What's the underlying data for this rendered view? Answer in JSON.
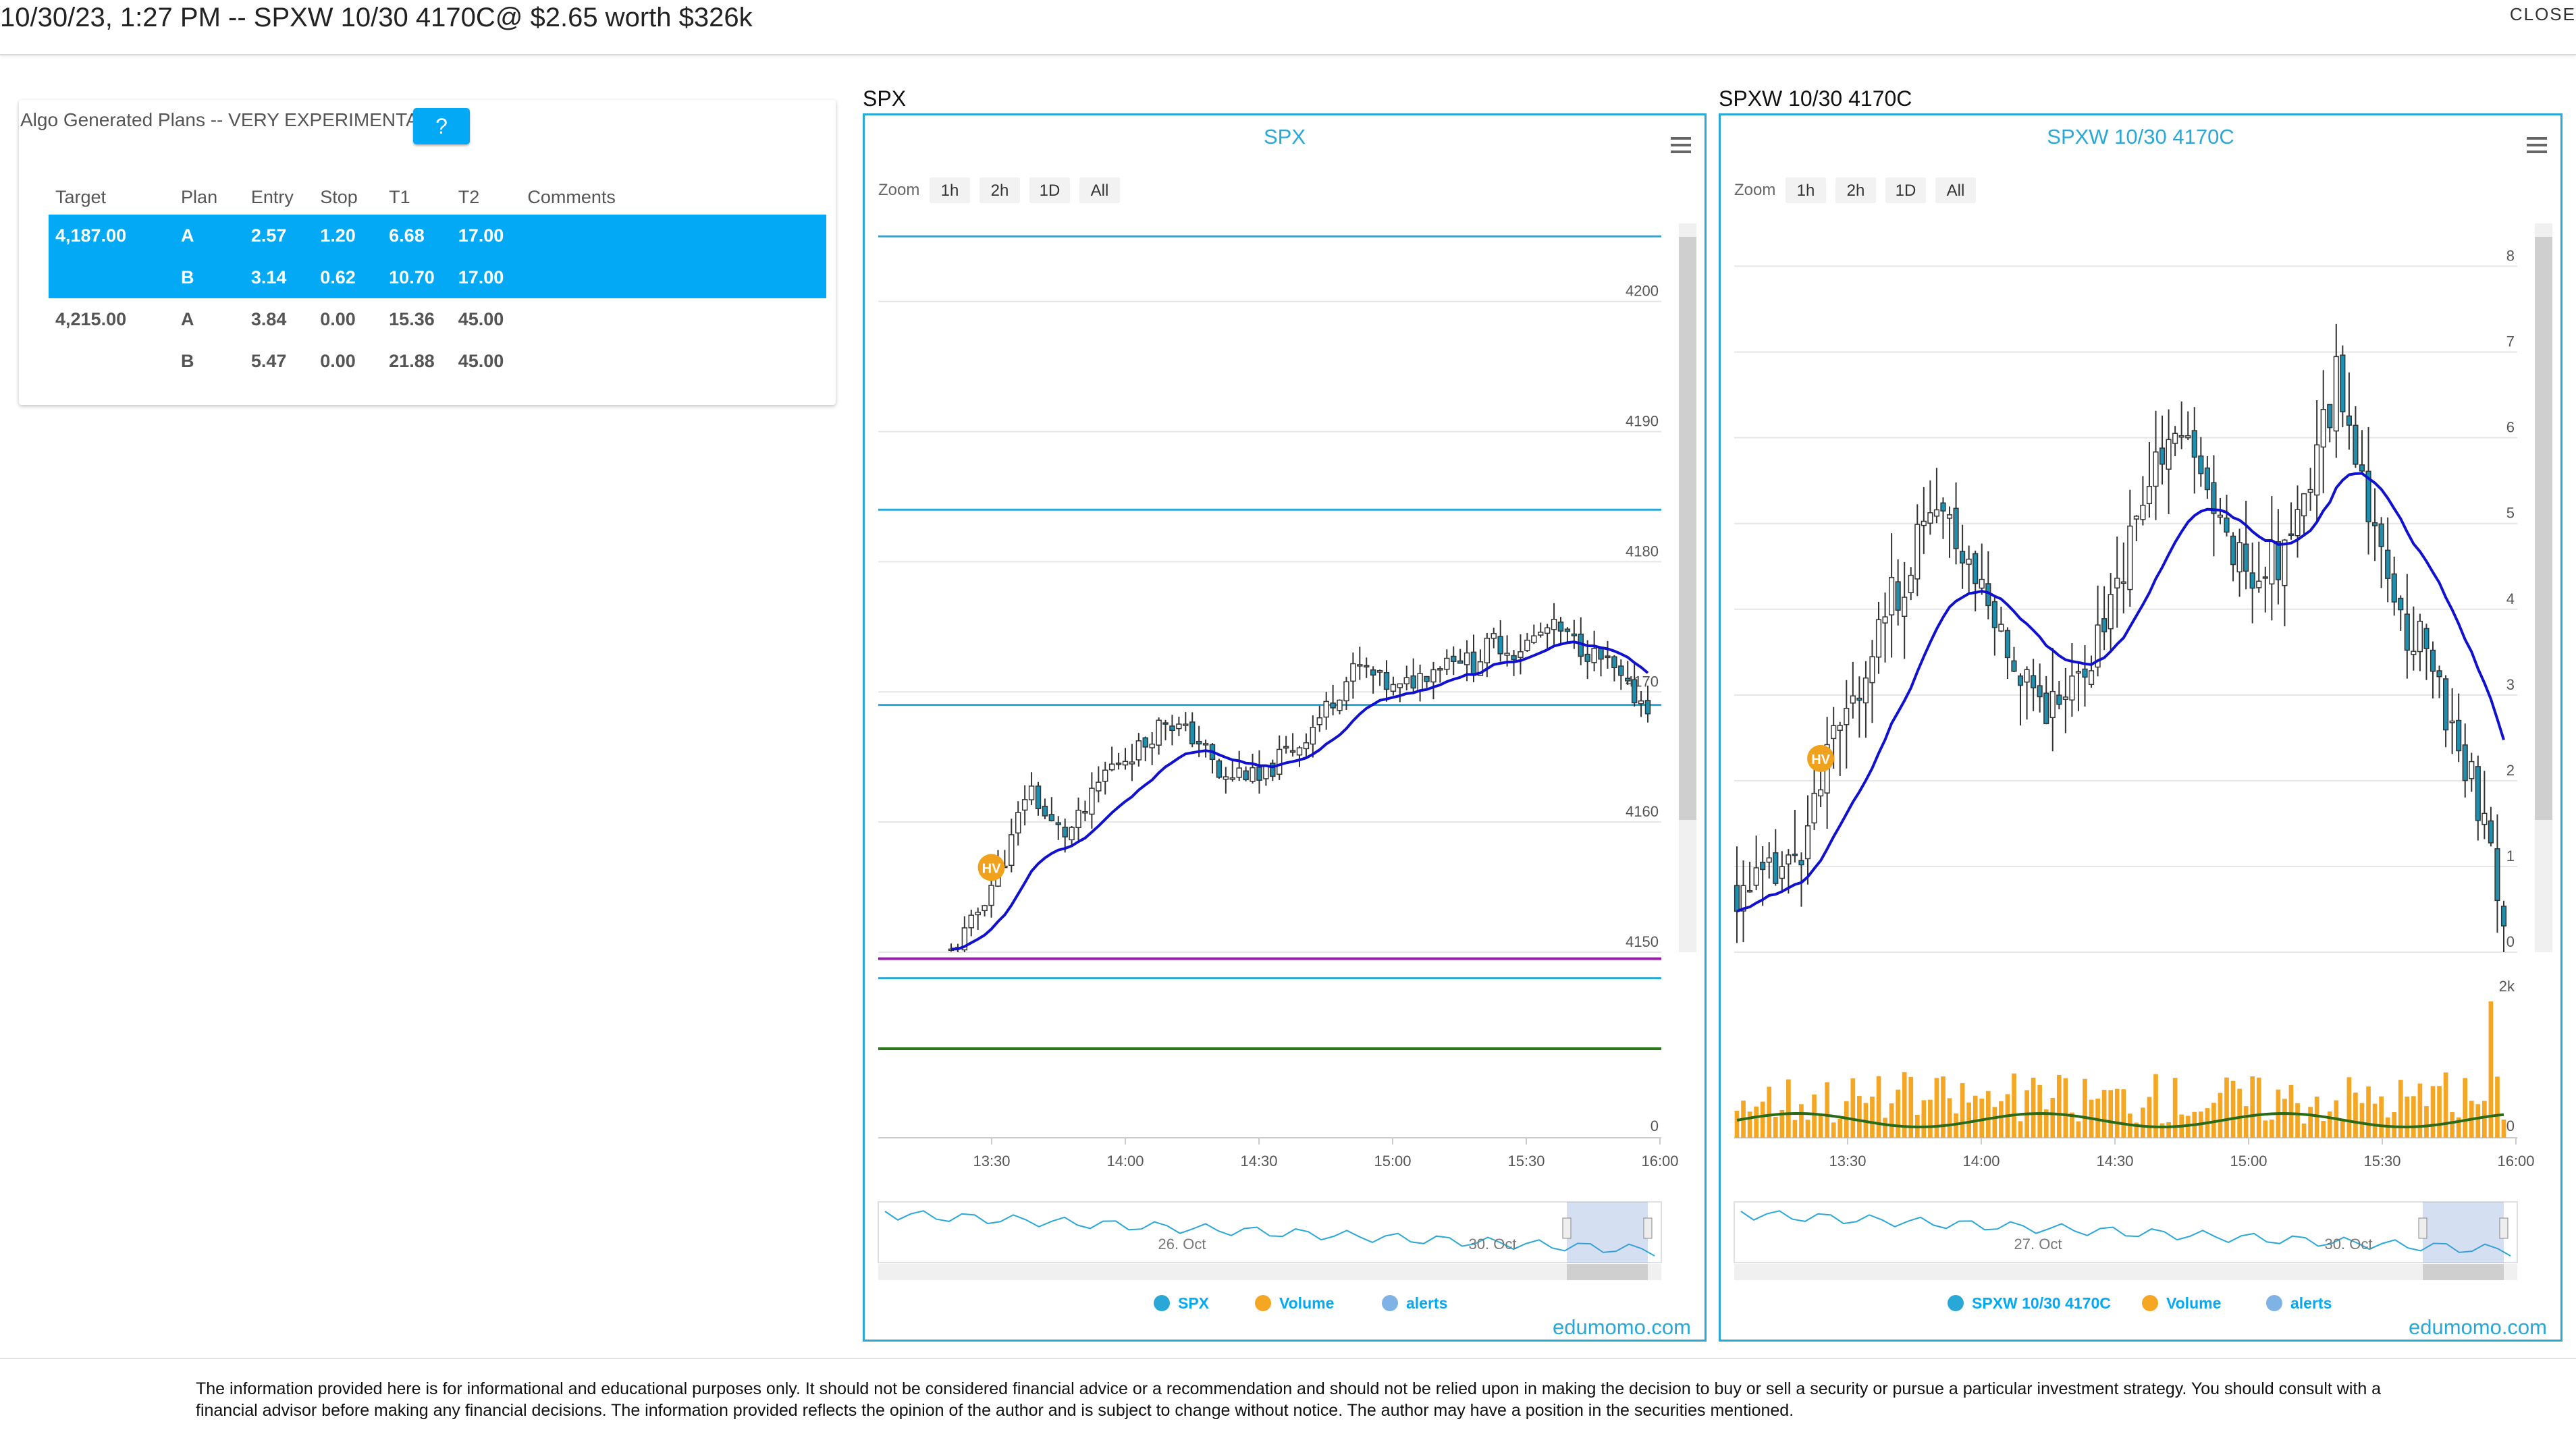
{
  "header": {
    "title": "10/30/23, 1:27 PM -- SPXW 10/30 4170C@ $2.65 worth $326k",
    "close_label": "CLOSE"
  },
  "plans": {
    "title": "Algo Generated Plans -- VERY EXPERIMENTAL",
    "help_label": "?",
    "columns": [
      "Target",
      "Plan",
      "Entry",
      "Stop",
      "T1",
      "T2",
      "Comments"
    ],
    "rows": [
      {
        "target": "4,187.00",
        "plan": "A",
        "entry": "2.57",
        "stop": "1.20",
        "t1": "6.68",
        "t2": "17.00",
        "comments": "",
        "highlighted": true
      },
      {
        "target": "",
        "plan": "B",
        "entry": "3.14",
        "stop": "0.62",
        "t1": "10.70",
        "t2": "17.00",
        "comments": "",
        "highlighted": true
      },
      {
        "target": "4,215.00",
        "plan": "A",
        "entry": "3.84",
        "stop": "0.00",
        "t1": "15.36",
        "t2": "45.00",
        "comments": "",
        "highlighted": false
      },
      {
        "target": "",
        "plan": "B",
        "entry": "5.47",
        "stop": "0.00",
        "t1": "21.88",
        "t2": "45.00",
        "comments": "",
        "highlighted": false
      }
    ]
  },
  "colors": {
    "accent": "#03a9f4",
    "border": "#29a8d8",
    "up": "#ffffff",
    "down": "#1f8fb0",
    "ema": "#1010d0",
    "volume": "#f5a623",
    "volume_ma": "#2a6b1a",
    "hv_badge": "#f0a21c",
    "level_blue": "#29a8d8",
    "level_purple": "#9b1fae",
    "level_green": "#2a7a1a"
  },
  "charts": [
    {
      "id": "spx",
      "label": "SPX",
      "title": "SPX",
      "zoom_label": "Zoom",
      "zoom_buttons": [
        "1h",
        "2h",
        "1D",
        "All"
      ],
      "menu_icon": "hamburger-menu-icon",
      "hv_label": "HV",
      "credit": "edumomo.com",
      "legend": [
        {
          "label": "SPX",
          "color": "#29a8d8"
        },
        {
          "label": "Volume",
          "color": "#f5a623"
        },
        {
          "label": "alerts",
          "color": "#7fb2e5"
        }
      ],
      "x_ticks": [
        "13:30",
        "14:00",
        "14:30",
        "15:00",
        "15:30",
        "16:00"
      ],
      "y_ticks": [
        "4150",
        "4160",
        "4170",
        "4180",
        "4190",
        "4200"
      ],
      "volume_ticks": [
        "0"
      ],
      "navigator_labels": [
        "26. Oct",
        "30. Oct"
      ]
    },
    {
      "id": "spxw",
      "label": "SPXW 10/30 4170C",
      "title": "SPXW 10/30 4170C",
      "zoom_label": "Zoom",
      "zoom_buttons": [
        "1h",
        "2h",
        "1D",
        "All"
      ],
      "menu_icon": "hamburger-menu-icon",
      "hv_label": "HV",
      "credit": "edumomo.com",
      "legend": [
        {
          "label": "SPXW 10/30 4170C",
          "color": "#29a8d8"
        },
        {
          "label": "Volume",
          "color": "#f5a623"
        },
        {
          "label": "alerts",
          "color": "#7fb2e5"
        }
      ],
      "x_ticks": [
        "13:30",
        "14:00",
        "14:30",
        "15:00",
        "15:30",
        "16:00"
      ],
      "y_ticks": [
        "0",
        "1",
        "2",
        "3",
        "4",
        "5",
        "6",
        "7",
        "8"
      ],
      "volume_ticks": [
        "0",
        "2k"
      ],
      "navigator_labels": [
        "27. Oct",
        "30. Oct"
      ]
    }
  ],
  "chart_data": [
    {
      "type": "candlestick",
      "title": "SPX",
      "x_range": [
        "13:10",
        "16:00"
      ],
      "ylim": [
        4150,
        4206
      ],
      "levels": [
        4148,
        4169,
        4184,
        4205
      ],
      "purple_level": 4149.5,
      "ema": [
        [
          4158.0,
          4170.0
        ],
        [
          4158.0,
          4176.0
        ]
      ],
      "close_path": [
        4150,
        4152,
        4155,
        4158,
        4163,
        4160,
        4159,
        4161,
        4164,
        4165,
        4166,
        4168,
        4167,
        4166,
        4163,
        4164,
        4163,
        4165,
        4166,
        4168,
        4170,
        4172,
        4171,
        4170,
        4171,
        4172,
        4173,
        4172,
        4174,
        4173,
        4174,
        4175,
        4174,
        4173,
        4172,
        4170,
        4169
      ]
    },
    {
      "type": "candlestick",
      "title": "SPXW 10/30 4170C",
      "x_range": [
        "13:10",
        "16:00"
      ],
      "ylim": [
        0,
        8.5
      ],
      "close_path": [
        0.7,
        0.8,
        0.9,
        1.5,
        2.4,
        3.1,
        3.8,
        4.4,
        5.1,
        4.9,
        4.4,
        3.7,
        3.3,
        2.9,
        3.1,
        3.6,
        4.4,
        5.2,
        6.1,
        5.8,
        5.0,
        4.6,
        4.4,
        4.8,
        5.6,
        6.7,
        5.8,
        4.3,
        3.8,
        3.4,
        2.4,
        1.7,
        0.5
      ],
      "volume_peak": "2k"
    }
  ],
  "disclaimer": "The information provided here is for informational and educational purposes only. It should not be considered financial advice or a recommendation and should not be relied upon in making the decision to buy or sell a security or pursue a particular investment strategy. You should consult with a financial advisor before making any financial decisions. The information provided reflects the opinion of the author and is subject to change without notice. The author may have a position in the securities mentioned."
}
